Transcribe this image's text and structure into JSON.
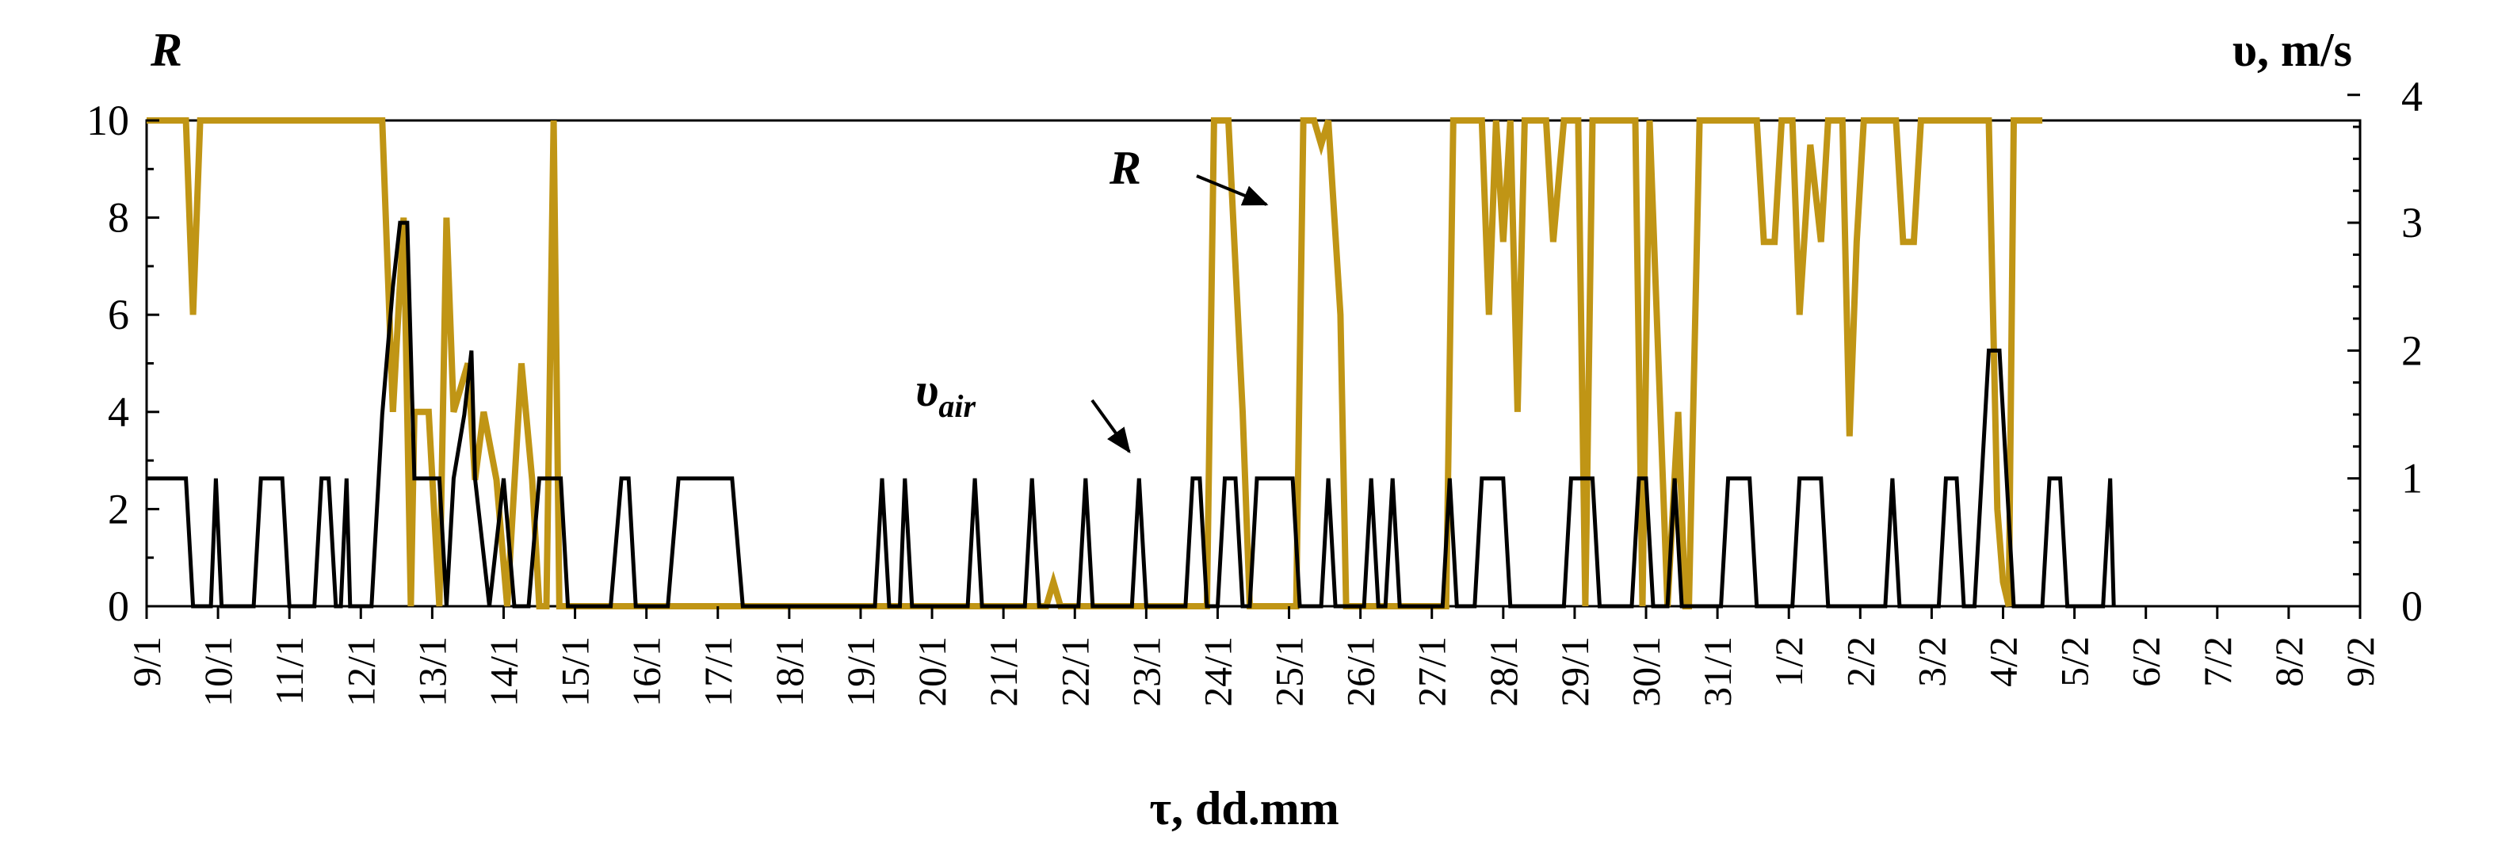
{
  "chart_data": {
    "type": "line",
    "xlabel": "τ, dd.mm",
    "ylabel_left": "R",
    "ylabel_right": "υ, m/s",
    "x_tick_labels": [
      "9/1",
      "10/1",
      "11/1",
      "12/1",
      "13/1",
      "14/1",
      "15/1",
      "16/1",
      "17/1",
      "18/1",
      "19/1",
      "20/1",
      "21/1",
      "22/1",
      "23/1",
      "24/1",
      "25/1",
      "26/1",
      "27/1",
      "28/1",
      "29/1",
      "30/1",
      "31/1",
      "1/2",
      "2/2",
      "3/2",
      "4/2",
      "5/2",
      "6/2",
      "7/2",
      "8/2",
      "9/2"
    ],
    "x_range_days": [
      0,
      31
    ],
    "y_left": {
      "min": 0,
      "max": 10,
      "ticks": [
        "0",
        "2",
        "4",
        "6",
        "8",
        "10"
      ]
    },
    "y_right": {
      "min": 0,
      "max": 3.8,
      "ticks": [
        "0",
        "1",
        "2",
        "3",
        "4"
      ]
    },
    "series": [
      {
        "name": "R",
        "axis": "left",
        "color": "#c09515",
        "points": [
          [
            0,
            10
          ],
          [
            0.55,
            10
          ],
          [
            0.65,
            6
          ],
          [
            0.75,
            10
          ],
          [
            3.3,
            10
          ],
          [
            3.45,
            4
          ],
          [
            3.6,
            8
          ],
          [
            3.7,
            0
          ],
          [
            3.75,
            4
          ],
          [
            3.95,
            4
          ],
          [
            4.1,
            0
          ],
          [
            4.2,
            8
          ],
          [
            4.3,
            4
          ],
          [
            4.5,
            5
          ],
          [
            4.6,
            2.6
          ],
          [
            4.72,
            4
          ],
          [
            4.9,
            2.6
          ],
          [
            5.05,
            0
          ],
          [
            5.25,
            5
          ],
          [
            5.4,
            2.6
          ],
          [
            5.5,
            0
          ],
          [
            5.6,
            0
          ],
          [
            5.7,
            10
          ],
          [
            5.78,
            0
          ],
          [
            12.6,
            0
          ],
          [
            12.7,
            0.5
          ],
          [
            12.8,
            0
          ],
          [
            14.85,
            0
          ],
          [
            14.95,
            10
          ],
          [
            15.15,
            10
          ],
          [
            15.35,
            4
          ],
          [
            15.45,
            0
          ],
          [
            16.1,
            0
          ],
          [
            16.2,
            10
          ],
          [
            16.35,
            10
          ],
          [
            16.45,
            9.5
          ],
          [
            16.55,
            10
          ],
          [
            16.72,
            6
          ],
          [
            16.8,
            0
          ],
          [
            18.2,
            0
          ],
          [
            18.3,
            10
          ],
          [
            18.7,
            10
          ],
          [
            18.8,
            6
          ],
          [
            18.9,
            10
          ],
          [
            19.0,
            7.5
          ],
          [
            19.1,
            10
          ],
          [
            19.2,
            4
          ],
          [
            19.3,
            10
          ],
          [
            19.6,
            10
          ],
          [
            19.7,
            7.5
          ],
          [
            19.85,
            10
          ],
          [
            20.05,
            10
          ],
          [
            20.15,
            0
          ],
          [
            20.25,
            10
          ],
          [
            20.85,
            10
          ],
          [
            20.95,
            0
          ],
          [
            21.05,
            10
          ],
          [
            21.3,
            0
          ],
          [
            21.45,
            4
          ],
          [
            21.55,
            0
          ],
          [
            21.6,
            0
          ],
          [
            21.75,
            10
          ],
          [
            22.55,
            10
          ],
          [
            22.65,
            7.5
          ],
          [
            22.8,
            7.5
          ],
          [
            22.9,
            10
          ],
          [
            23.05,
            10
          ],
          [
            23.15,
            6
          ],
          [
            23.3,
            9.5
          ],
          [
            23.45,
            7.5
          ],
          [
            23.55,
            10
          ],
          [
            23.75,
            10
          ],
          [
            23.85,
            3.5
          ],
          [
            23.95,
            7.5
          ],
          [
            24.05,
            10
          ],
          [
            24.5,
            10
          ],
          [
            24.6,
            7.5
          ],
          [
            24.75,
            7.5
          ],
          [
            24.85,
            10
          ],
          [
            25.8,
            10
          ],
          [
            25.92,
            2
          ],
          [
            26.0,
            0.5
          ],
          [
            26.08,
            0
          ],
          [
            26.15,
            10
          ],
          [
            26.55,
            10
          ]
        ]
      },
      {
        "name": "υair",
        "axis": "right",
        "color": "#000000",
        "points": [
          [
            0,
            1
          ],
          [
            0.55,
            1
          ],
          [
            0.65,
            0
          ],
          [
            0.9,
            0
          ],
          [
            0.97,
            1
          ],
          [
            1.05,
            0
          ],
          [
            1.5,
            0
          ],
          [
            1.6,
            1
          ],
          [
            1.9,
            1
          ],
          [
            2.0,
            0
          ],
          [
            2.35,
            0
          ],
          [
            2.45,
            1
          ],
          [
            2.55,
            1
          ],
          [
            2.65,
            0
          ],
          [
            2.72,
            0
          ],
          [
            2.8,
            1
          ],
          [
            2.85,
            0
          ],
          [
            3.15,
            0
          ],
          [
            3.3,
            1.5
          ],
          [
            3.45,
            2.5
          ],
          [
            3.55,
            3
          ],
          [
            3.65,
            3
          ],
          [
            3.75,
            1
          ],
          [
            4.1,
            1
          ],
          [
            4.2,
            0
          ],
          [
            4.3,
            1
          ],
          [
            4.45,
            1.5
          ],
          [
            4.55,
            2
          ],
          [
            4.6,
            1
          ],
          [
            4.8,
            0
          ],
          [
            5.0,
            1
          ],
          [
            5.15,
            0
          ],
          [
            5.35,
            0
          ],
          [
            5.5,
            1
          ],
          [
            5.8,
            1
          ],
          [
            5.9,
            0
          ],
          [
            6.5,
            0
          ],
          [
            6.65,
            1
          ],
          [
            6.75,
            1
          ],
          [
            6.85,
            0
          ],
          [
            7.3,
            0
          ],
          [
            7.45,
            1
          ],
          [
            8.2,
            1
          ],
          [
            8.35,
            0
          ],
          [
            10.2,
            0
          ],
          [
            10.3,
            1
          ],
          [
            10.4,
            0
          ],
          [
            10.55,
            0
          ],
          [
            10.62,
            1
          ],
          [
            10.72,
            0
          ],
          [
            11.5,
            0
          ],
          [
            11.6,
            1
          ],
          [
            11.7,
            0
          ],
          [
            12.3,
            0
          ],
          [
            12.4,
            1
          ],
          [
            12.5,
            0
          ],
          [
            13.05,
            0
          ],
          [
            13.15,
            1
          ],
          [
            13.25,
            0
          ],
          [
            13.8,
            0
          ],
          [
            13.9,
            1
          ],
          [
            14.0,
            0
          ],
          [
            14.55,
            0
          ],
          [
            14.65,
            1
          ],
          [
            14.75,
            1
          ],
          [
            14.85,
            0
          ],
          [
            15.0,
            0
          ],
          [
            15.1,
            1
          ],
          [
            15.25,
            1
          ],
          [
            15.35,
            0
          ],
          [
            15.45,
            0
          ],
          [
            15.55,
            1
          ],
          [
            16.05,
            1
          ],
          [
            16.15,
            0
          ],
          [
            16.45,
            0
          ],
          [
            16.55,
            1
          ],
          [
            16.65,
            0
          ],
          [
            17.05,
            0
          ],
          [
            17.15,
            1
          ],
          [
            17.25,
            0
          ],
          [
            17.35,
            0
          ],
          [
            17.45,
            1
          ],
          [
            17.55,
            0
          ],
          [
            18.15,
            0
          ],
          [
            18.25,
            1
          ],
          [
            18.35,
            0
          ],
          [
            18.6,
            0
          ],
          [
            18.7,
            1
          ],
          [
            19.0,
            1
          ],
          [
            19.1,
            0
          ],
          [
            19.85,
            0
          ],
          [
            19.95,
            1
          ],
          [
            20.25,
            1
          ],
          [
            20.35,
            0
          ],
          [
            20.8,
            0
          ],
          [
            20.9,
            1
          ],
          [
            21.0,
            1
          ],
          [
            21.1,
            0
          ],
          [
            21.3,
            0
          ],
          [
            21.4,
            1
          ],
          [
            21.5,
            0
          ],
          [
            22.05,
            0
          ],
          [
            22.15,
            1
          ],
          [
            22.45,
            1
          ],
          [
            22.55,
            0
          ],
          [
            23.05,
            0
          ],
          [
            23.15,
            1
          ],
          [
            23.45,
            1
          ],
          [
            23.55,
            0
          ],
          [
            24.35,
            0
          ],
          [
            24.45,
            1
          ],
          [
            24.55,
            0
          ],
          [
            25.1,
            0
          ],
          [
            25.2,
            1
          ],
          [
            25.35,
            1
          ],
          [
            25.45,
            0
          ],
          [
            25.6,
            0
          ],
          [
            25.7,
            1
          ],
          [
            25.8,
            2
          ],
          [
            25.95,
            2
          ],
          [
            26.05,
            1
          ],
          [
            26.15,
            0
          ],
          [
            26.55,
            0
          ],
          [
            26.65,
            1
          ],
          [
            26.8,
            1
          ],
          [
            26.9,
            0
          ],
          [
            27.4,
            0
          ],
          [
            27.5,
            1
          ],
          [
            27.55,
            0
          ]
        ]
      }
    ],
    "annotations": [
      {
        "text": "R",
        "target_day": 16.2,
        "target_value": 8,
        "axis": "left"
      },
      {
        "text": "υ",
        "subscript": "air",
        "target_day": 13.15,
        "target_value": 1,
        "axis": "right"
      }
    ]
  }
}
